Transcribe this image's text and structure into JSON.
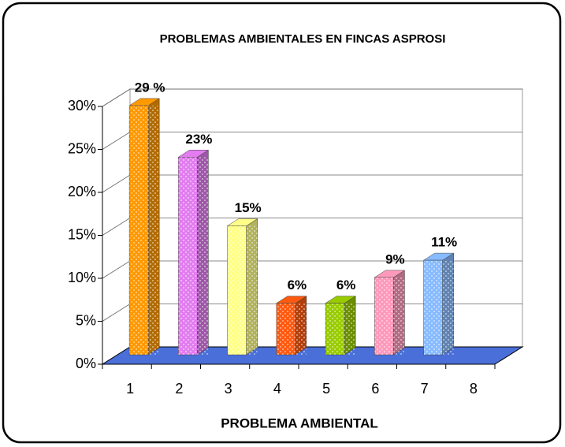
{
  "chart_data": {
    "type": "bar3d",
    "title": "PROBLEMAS AMBIENTALES EN FINCAS ASPROSI",
    "x_label": "PROBLEMA AMBIENTAL",
    "categories": [
      "1",
      "2",
      "3",
      "4",
      "5",
      "6",
      "7",
      "8"
    ],
    "values": [
      29,
      23,
      15,
      6,
      6,
      9,
      11,
      null
    ],
    "value_labels": [
      "29 %",
      "23%",
      "15%",
      "6%",
      "6%",
      "9%",
      "11%",
      null
    ],
    "colors": [
      "#ff9900",
      "#e27cf0",
      "#ffff88",
      "#ff5a10",
      "#99cc00",
      "#ff99bb",
      "#88bbff",
      null
    ],
    "ylim": [
      0,
      30
    ],
    "yticks": [
      {
        "value": 0,
        "label": "0%"
      },
      {
        "value": 5,
        "label": "5%"
      },
      {
        "value": 10,
        "label": "10%"
      },
      {
        "value": 15,
        "label": "15%"
      },
      {
        "value": 20,
        "label": "20%"
      },
      {
        "value": 25,
        "label": "25%"
      },
      {
        "value": 30,
        "label": "30%"
      }
    ],
    "grid": true
  }
}
